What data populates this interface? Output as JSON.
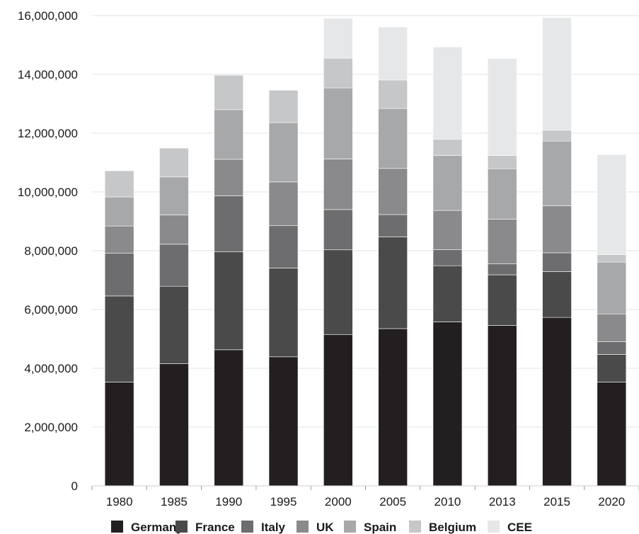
{
  "chart_data": {
    "type": "bar",
    "stacked": true,
    "title": "",
    "xlabel": "",
    "ylabel": "",
    "categories": [
      "1980",
      "1985",
      "1990",
      "1995",
      "2000",
      "2005",
      "2010",
      "2013",
      "2015",
      "2020"
    ],
    "ylim": [
      0,
      16000000
    ],
    "yticks": [
      0,
      2000000,
      4000000,
      6000000,
      8000000,
      10000000,
      12000000,
      14000000,
      16000000
    ],
    "ytick_labels": [
      "0",
      "2,000,000",
      "4,000,000",
      "6,000,000",
      "8,000,000",
      "10,000,000",
      "12,000,000",
      "14,000,000",
      "16,000,000"
    ],
    "grid": "horizontal",
    "legend_position": "bottom",
    "series": [
      {
        "name": "Germany",
        "color": "#231f20",
        "values": [
          3530000,
          4160000,
          4630000,
          4390000,
          5150000,
          5350000,
          5580000,
          5460000,
          5730000,
          3530000
        ]
      },
      {
        "name": "France",
        "color": "#4a4a4a",
        "values": [
          2930000,
          2630000,
          3330000,
          3020000,
          2880000,
          3120000,
          1910000,
          1720000,
          1560000,
          940000
        ]
      },
      {
        "name": "Italy",
        "color": "#6d6d6f",
        "values": [
          1460000,
          1430000,
          1910000,
          1440000,
          1370000,
          760000,
          550000,
          370000,
          640000,
          430000
        ]
      },
      {
        "name": "UK",
        "color": "#8a8a8c",
        "values": [
          920000,
          1000000,
          1240000,
          1490000,
          1720000,
          1570000,
          1330000,
          1520000,
          1600000,
          950000
        ]
      },
      {
        "name": "Spain",
        "color": "#a7a8aa",
        "values": [
          990000,
          1290000,
          1690000,
          2020000,
          2420000,
          2040000,
          1870000,
          1720000,
          2200000,
          1760000
        ]
      },
      {
        "name": "Belgium",
        "color": "#c6c7c8",
        "values": [
          890000,
          980000,
          1170000,
          1100000,
          1010000,
          970000,
          550000,
          450000,
          370000,
          260000
        ]
      },
      {
        "name": "CEE",
        "color": "#e6e7e8",
        "values": [
          0,
          0,
          0,
          0,
          1360000,
          1800000,
          3140000,
          3300000,
          3830000,
          3400000
        ]
      }
    ]
  }
}
